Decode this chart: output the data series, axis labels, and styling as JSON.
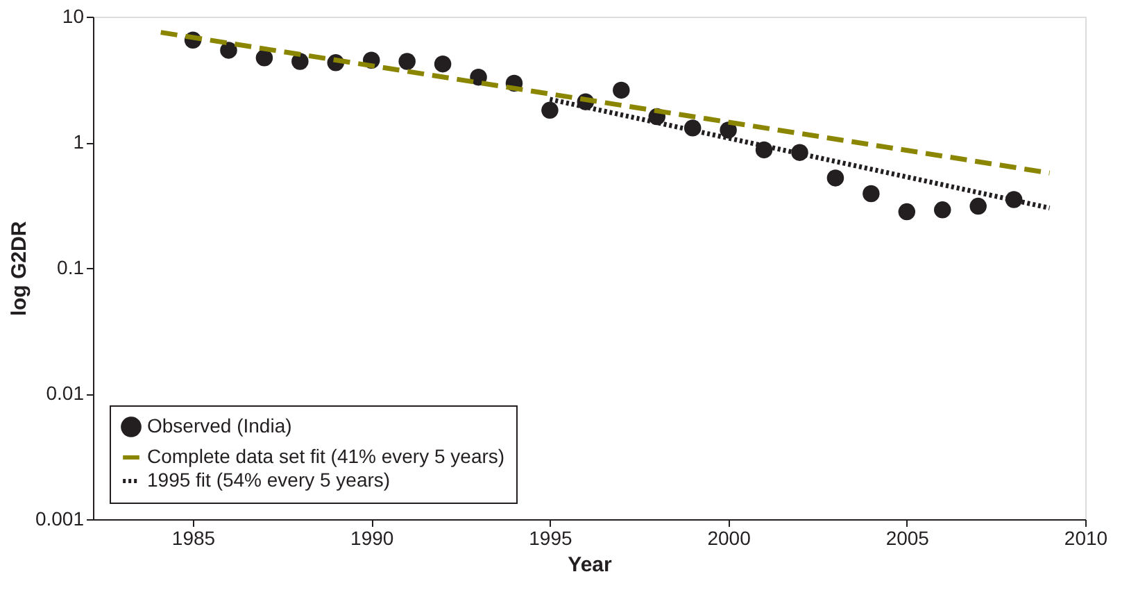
{
  "chart_data": {
    "type": "scatter",
    "xlabel": "Year",
    "ylabel": "log G2DR",
    "log": "y",
    "grid": false,
    "legend": "bottom left",
    "xlim": [
      1982.2,
      2010
    ],
    "xticks": [
      1985,
      1990,
      1995,
      2000,
      2005,
      2010
    ],
    "ylim": [
      0.001,
      10
    ],
    "yticks": [
      0.001,
      0.01,
      0.1,
      1,
      10
    ],
    "series": [
      {
        "name": "Observed (India)",
        "marker": "circle",
        "color": "#231f20",
        "x": [
          1985,
          1986,
          1987,
          1988,
          1989,
          1990,
          1991,
          1992,
          1993,
          1994,
          1995,
          1996,
          1997,
          1998,
          1999,
          2000,
          2001,
          2002,
          2003,
          2004,
          2005,
          2006,
          2007,
          2008
        ],
        "values": [
          6.5,
          5.4,
          4.7,
          4.4,
          4.3,
          4.5,
          4.4,
          4.2,
          3.3,
          2.95,
          1.8,
          2.1,
          2.6,
          1.6,
          1.3,
          1.25,
          0.87,
          0.83,
          0.52,
          0.39,
          0.28,
          0.29,
          0.31,
          0.35
        ]
      },
      {
        "name": "Complete data set fit (41% every 5 years)",
        "type": "line",
        "line_style": "dashed",
        "color": "#8b8600",
        "x": [
          1984.1,
          2009
        ],
        "values": [
          7.5,
          0.57
        ]
      },
      {
        "name": "1995 fit (54% every  5 years)",
        "type": "line",
        "line_style": "dotted",
        "color": "#231f20",
        "x": [
          1995,
          2009
        ],
        "values": [
          2.2,
          0.3
        ]
      }
    ]
  }
}
